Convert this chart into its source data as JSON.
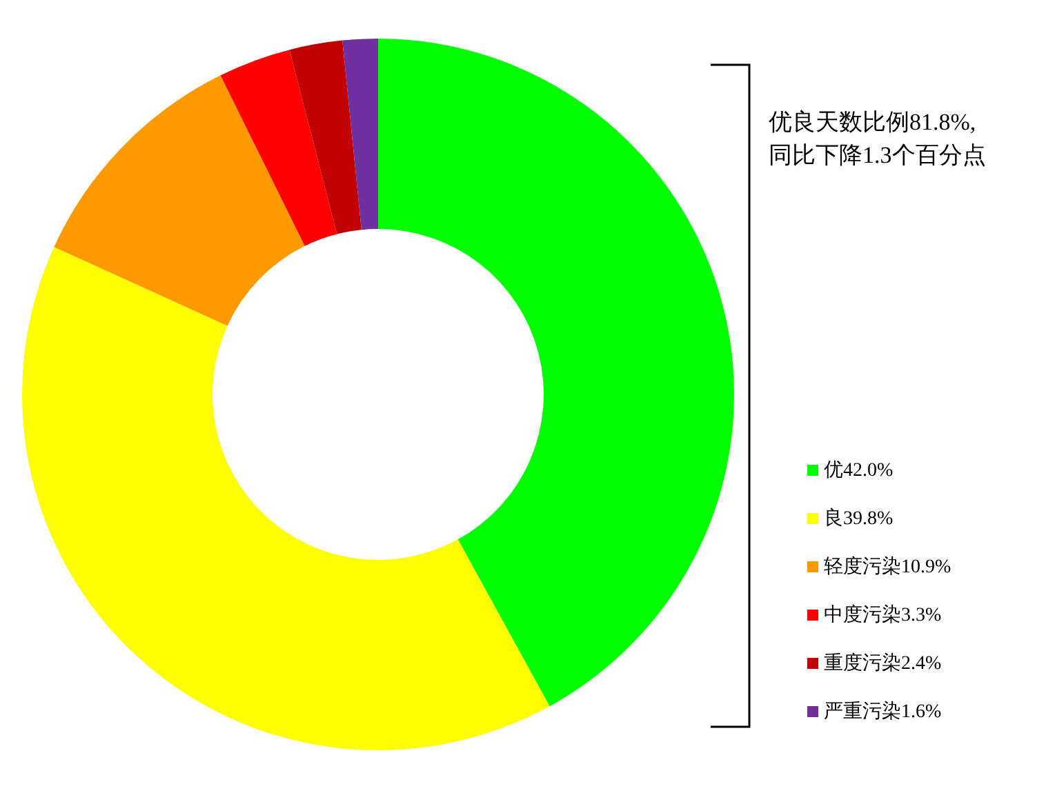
{
  "chart_data": {
    "type": "donut",
    "categories": [
      "优",
      "良",
      "轻度污染",
      "中度污染",
      "重度污染",
      "严重污染"
    ],
    "values": [
      42.0,
      39.8,
      10.9,
      3.3,
      2.4,
      1.6
    ],
    "value_labels": [
      "42.0%",
      "39.8%",
      "10.9%",
      "3.3%",
      "2.4%",
      "1.6%"
    ],
    "colors": [
      "#00ff00",
      "#ffff00",
      "#ff9900",
      "#ff0000",
      "#c00000",
      "#7030a0"
    ],
    "legend": "right",
    "annotations": [
      "优良天数比例81.8%,\n同比下降1.3个百分点"
    ]
  }
}
